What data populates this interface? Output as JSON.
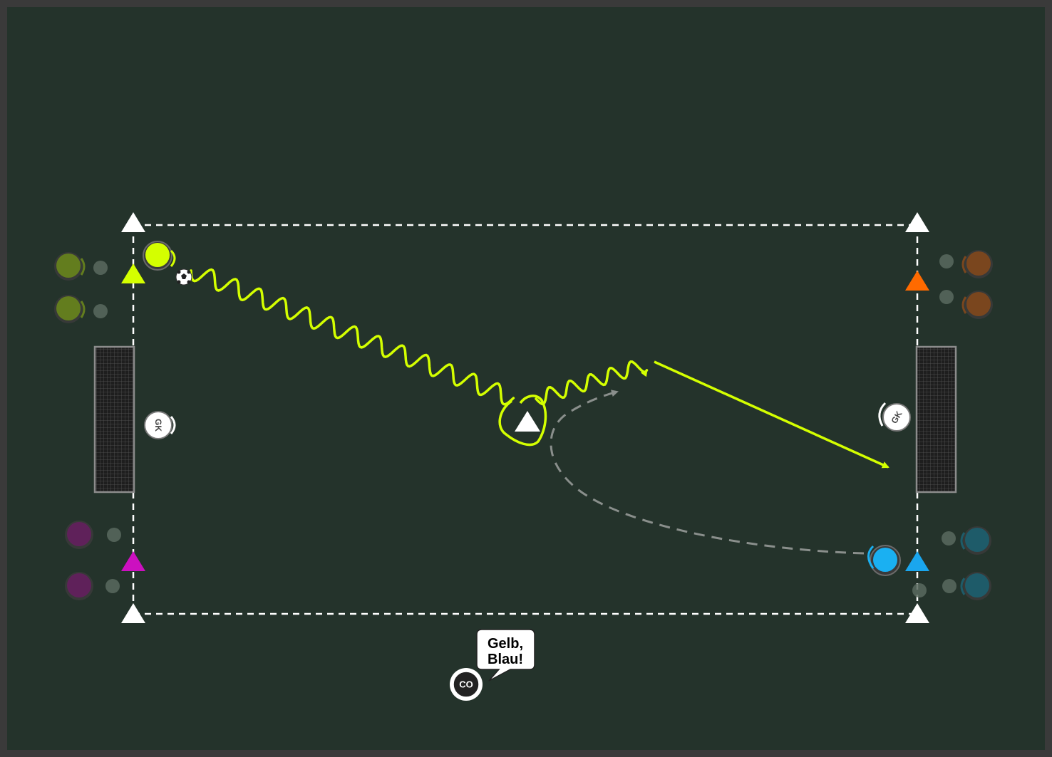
{
  "colors": {
    "frame": "#3a3a3a",
    "pitch": "#24332b",
    "line": "#ffffff",
    "run_yellow": "#d4ff00",
    "run_grey": "#8a8f8c",
    "team_olive": "#6f8a1c",
    "team_brown": "#8a4a1c",
    "team_purple": "#6a1f63",
    "team_teal": "#1d6374",
    "cone_yellow": "#d4ff00",
    "cone_orange": "#ff6a00",
    "cone_magenta": "#cc10c0",
    "cone_blue": "#1aa6ee",
    "player_yellow": "#d4ff00",
    "player_blue": "#1ab0f2"
  },
  "players": {
    "goalkeeper_left": "GK",
    "goalkeeper_right": "GK",
    "coach": "CO"
  },
  "coach_callout": {
    "line1": "Gelb,",
    "line2": "Blau!"
  },
  "icons": {
    "ball": "soccer-ball-icon",
    "goal": "goal-net-icon",
    "cone": "cone-triangle-icon"
  }
}
